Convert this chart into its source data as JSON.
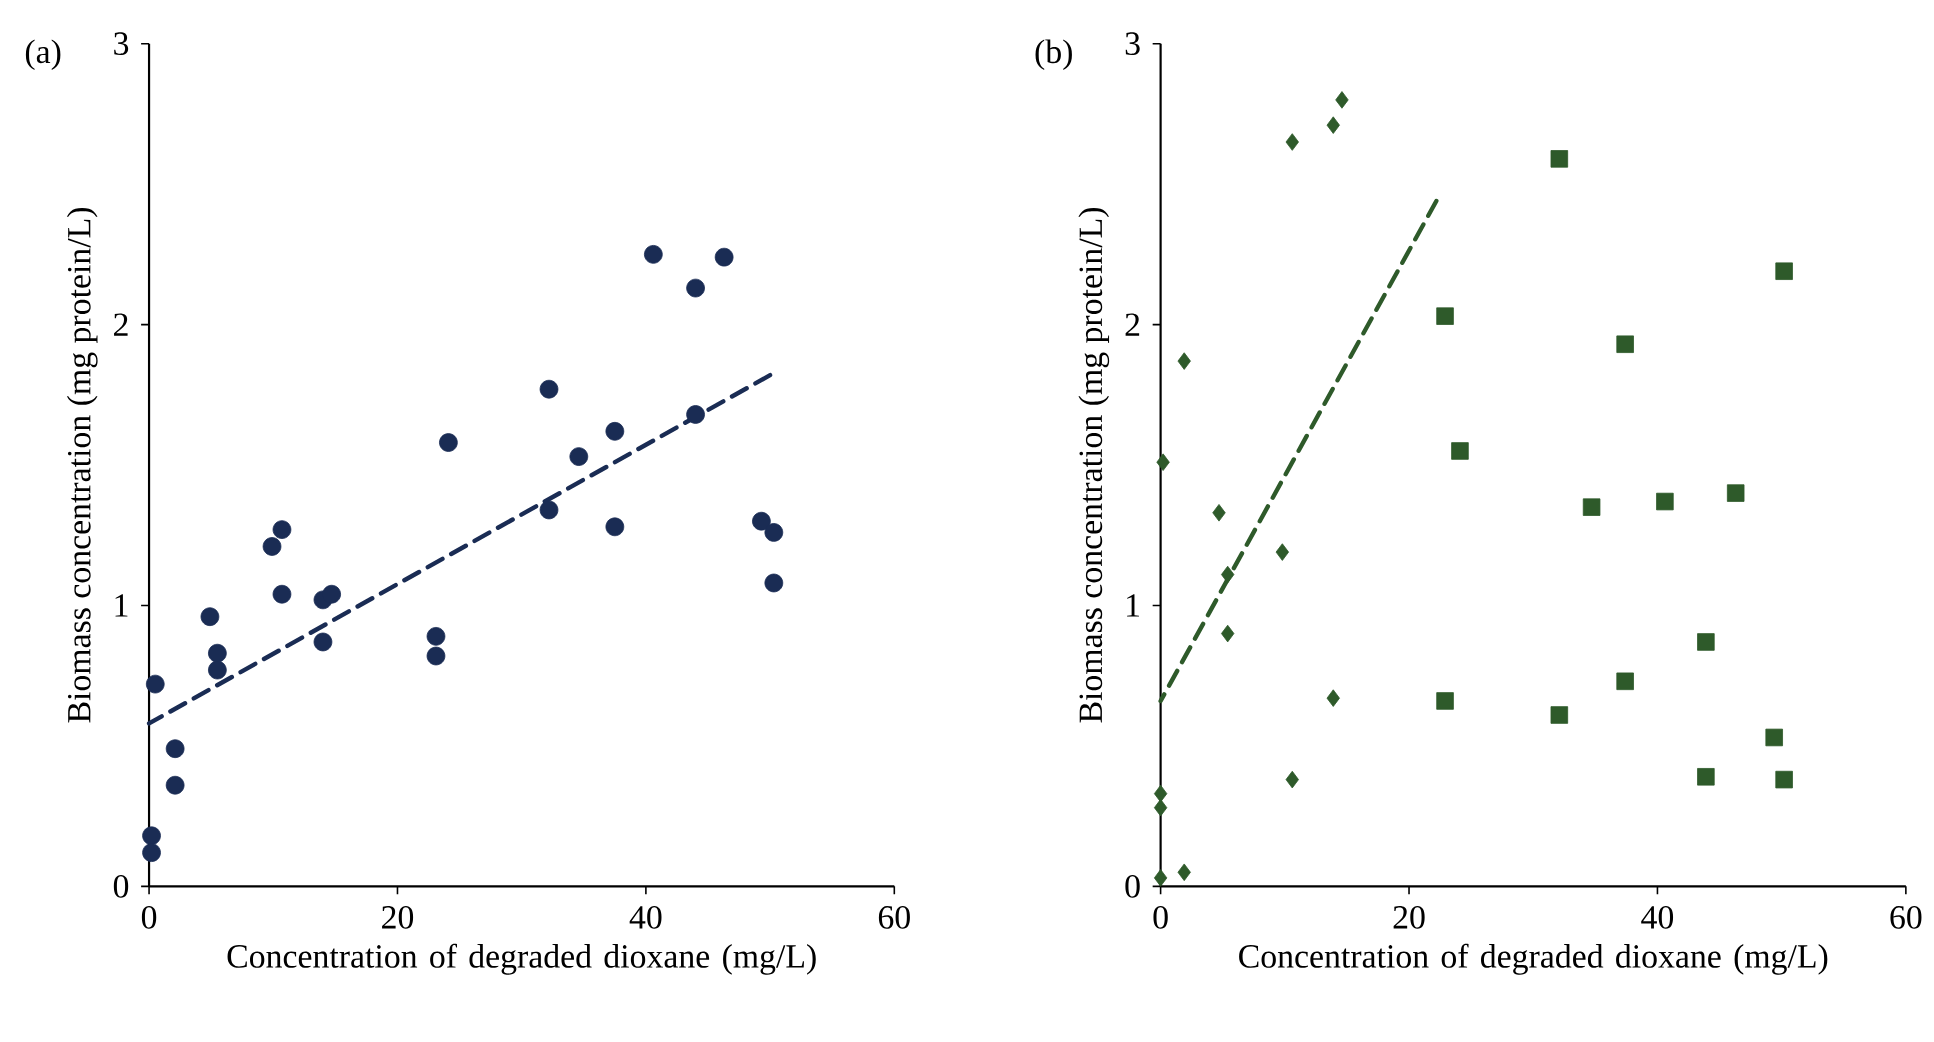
{
  "chart_data": [
    {
      "type": "scatter",
      "annotations": [
        "(a)"
      ],
      "xlabel": "Concentration of degraded dioxane (mg/L)",
      "ylabel": "Biomass concentration (mg protein/L)",
      "xlim": [
        0,
        60
      ],
      "ylim": [
        0,
        3
      ],
      "xticks": [
        0,
        20,
        40,
        60
      ],
      "yticks": [
        0,
        1,
        2,
        3
      ],
      "series": [
        {
          "type": "scatter",
          "marker": "circle",
          "color": "#1a2c54",
          "x": [
            0.5,
            2.1,
            2.1,
            0.2,
            0.2,
            4.9,
            5.5,
            5.5,
            9.9,
            10.7,
            10.7,
            14.0,
            14.7,
            14.0,
            23.1,
            23.1,
            24.1,
            32.2,
            32.2,
            34.6,
            37.5,
            37.5,
            40.6,
            44.0,
            44.0,
            46.3,
            49.3,
            50.3,
            50.3
          ],
          "values": [
            0.72,
            0.49,
            0.36,
            0.18,
            0.12,
            0.96,
            0.83,
            0.77,
            1.21,
            1.27,
            1.04,
            1.02,
            1.04,
            0.87,
            0.89,
            0.82,
            1.58,
            1.77,
            1.34,
            1.53,
            1.62,
            1.28,
            2.25,
            2.13,
            1.68,
            2.24,
            1.3,
            1.26,
            1.08
          ]
        },
        {
          "type": "line",
          "line_style": "dashed",
          "marker": "none",
          "color": "#1a2c54",
          "x": [
            0,
            50
          ],
          "values": [
            0.58,
            1.82
          ]
        }
      ]
    },
    {
      "type": "scatter",
      "annotations": [
        "(b)"
      ],
      "xlabel": "Concentration of degraded dioxane (mg/L)",
      "ylabel": "Biomass concentration (mg protein/L)",
      "xlim": [
        0,
        60
      ],
      "ylim": [
        0,
        3
      ],
      "xticks": [
        0,
        20,
        40,
        60
      ],
      "yticks": [
        0,
        1,
        2,
        3
      ],
      "series": [
        {
          "type": "scatter",
          "marker": "diamond",
          "color": "#2e5a2a",
          "x": [
            0,
            1.9,
            0,
            0,
            0.2,
            1.9,
            4.7,
            5.4,
            5.4,
            9.8,
            10.6,
            10.6,
            13.9,
            13.9,
            14.6
          ],
          "values": [
            0.03,
            0.05,
            0.28,
            0.33,
            1.51,
            1.87,
            1.33,
            1.11,
            0.9,
            1.19,
            2.65,
            0.38,
            0.67,
            2.71,
            2.8
          ]
        },
        {
          "type": "scatter",
          "marker": "square",
          "color": "#2e5a2a",
          "x": [
            22.9,
            22.9,
            24.1,
            32.1,
            32.1,
            34.7,
            37.4,
            37.4,
            40.6,
            43.9,
            43.9,
            46.3,
            49.4,
            50.2,
            50.2
          ],
          "values": [
            2.03,
            0.66,
            1.55,
            2.59,
            0.61,
            1.35,
            1.93,
            0.73,
            1.37,
            0.87,
            0.39,
            1.4,
            0.53,
            2.19,
            0.38
          ]
        },
        {
          "type": "line",
          "line_style": "dashed",
          "marker": "none",
          "color": "#2e5a2a",
          "x": [
            0,
            22.2
          ],
          "values": [
            0.66,
            2.44
          ]
        }
      ]
    }
  ]
}
